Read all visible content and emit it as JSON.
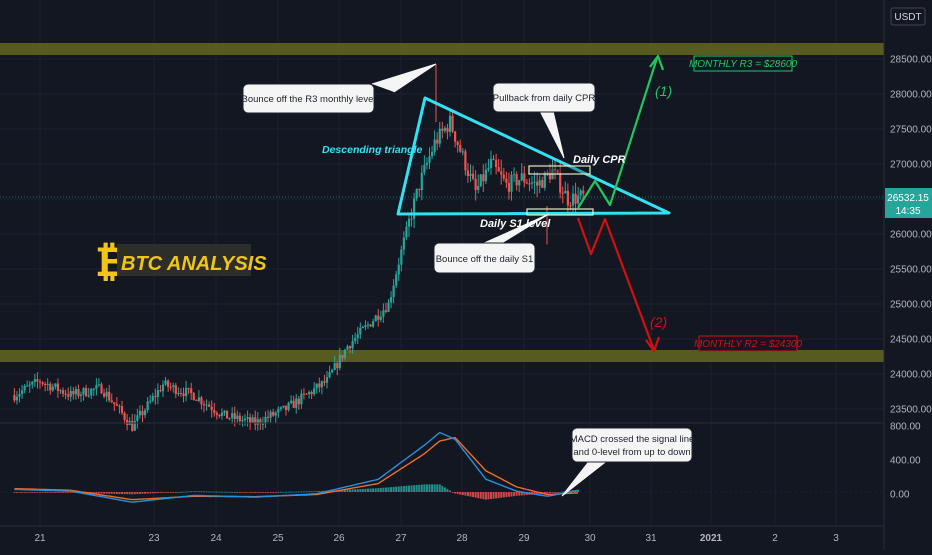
{
  "header": {
    "currency": "USDT"
  },
  "price_axis": {
    "ticks": [
      "28500.00",
      "28000.00",
      "27500.00",
      "27000.00",
      "26500.00",
      "26000.00",
      "25500.00",
      "25000.00",
      "24500.00",
      "24000.00",
      "23500.00"
    ],
    "current_price": "26532.15",
    "countdown": "14:35"
  },
  "macd_axis": {
    "ticks": [
      "800.00",
      "400.00",
      "0.00"
    ]
  },
  "time_axis": {
    "ticks": [
      "21",
      "23",
      "24",
      "25",
      "26",
      "27",
      "28",
      "29",
      "30",
      "31",
      "2021",
      "2",
      "3"
    ]
  },
  "logo": {
    "symbol": "₿",
    "text": "BTC ANALYSIS"
  },
  "annotations": {
    "r3_bounce": "Bounce off the R3 monthly level",
    "pullback": "Pullback from daily CPR",
    "descending_triangle": "Descending triangle",
    "daily_cpr": "Daily CPR",
    "daily_s1": "Daily S1 level",
    "s1_bounce": "Bounce off the daily S1",
    "macd_line1": "MACD crossed the signal line",
    "macd_line2": "and 0-level from up to down",
    "monthly_r3": "MONTHLY R3 = $28600",
    "monthly_r2": "MONTHLY R2 = $24300",
    "scenario1": "(1)",
    "scenario2": "(2)"
  },
  "colors": {
    "background": "#131722",
    "grid": "#1e2230",
    "up_candle": "#26a69a",
    "down_candle": "#ef5350",
    "level_band": "#585b1f",
    "triangle": "#33e1f2",
    "bull_arrow": "#22c55e",
    "bear_arrow": "#d11010",
    "macd_line": "#2a8fd6",
    "signal_line": "#ef6c2c",
    "price_tag": "#26a69a",
    "logo": "#f0c419"
  },
  "chart_data": {
    "type": "candlestick",
    "symbol": "BTC/USDT",
    "y_range": [
      23260,
      28950
    ],
    "macd_range": [
      -260,
      800
    ],
    "levels": [
      {
        "label": "MONTHLY R3 = $28600",
        "value": 28600
      },
      {
        "label": "MONTHLY R2 = $24300",
        "value": 24300
      }
    ],
    "price_path": {
      "x": [
        "Dec 20 14:00",
        "Dec 21 00:00",
        "Dec 21 12:00",
        "Dec 22 00:00",
        "Dec 22 12:00",
        "Dec 23 00:00",
        "Dec 23 12:00",
        "Dec 24 00:00",
        "Dec 24 12:00",
        "Dec 25 00:00",
        "Dec 25 08:00",
        "Dec 25 16:00",
        "Dec 26 00:00",
        "Dec 26 08:00",
        "Dec 26 16:00",
        "Dec 26 22:00",
        "Dec 27 04:00",
        "Dec 27 10:00",
        "Dec 27 16:00",
        "Dec 27 20:00",
        "Dec 28 02:00",
        "Dec 28 08:00",
        "Dec 28 14:00",
        "Dec 28 20:00",
        "Dec 29 02:00",
        "Dec 29 08:00",
        "Dec 29 14:00",
        "Dec 29 20:00"
      ],
      "close": [
        23700,
        23900,
        23700,
        23800,
        23250,
        23850,
        23700,
        23400,
        23300,
        23500,
        23700,
        23900,
        24400,
        24700,
        25000,
        25900,
        26700,
        27300,
        27600,
        27200,
        26600,
        27000,
        26700,
        26800,
        26700,
        26900,
        26500,
        26532
      ]
    },
    "macd": {
      "x": [
        "Dec 20 14:00",
        "Dec 21 12:00",
        "Dec 22 12:00",
        "Dec 23 12:00",
        "Dec 24 12:00",
        "Dec 25 12:00",
        "Dec 26 12:00",
        "Dec 27 06:00",
        "Dec 27 12:00",
        "Dec 27 18:00",
        "Dec 28 06:00",
        "Dec 28 18:00",
        "Dec 29 06:00",
        "Dec 29 18:00"
      ],
      "macd": [
        30,
        10,
        -120,
        -40,
        -60,
        -20,
        150,
        550,
        700,
        620,
        150,
        10,
        -50,
        20
      ],
      "signal": [
        40,
        20,
        -90,
        -50,
        -55,
        -30,
        100,
        450,
        600,
        640,
        250,
        60,
        -30,
        -10
      ]
    },
    "scenarios": [
      {
        "name": "(1)",
        "target": 28600
      },
      {
        "name": "(2)",
        "target": 24300
      }
    ]
  }
}
